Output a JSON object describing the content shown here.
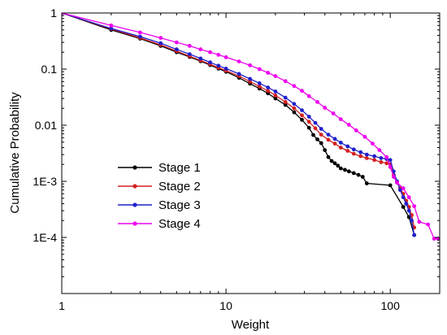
{
  "chart_data": {
    "type": "line",
    "title": "",
    "xlabel": "Weight",
    "ylabel": "Cumulative Probability",
    "x_scale": "log",
    "y_scale": "log",
    "xlim": [
      1,
      200
    ],
    "ylim": [
      1e-05,
      1
    ],
    "grid": false,
    "legend_position": "center-left",
    "x_ticks": [
      {
        "value": 1,
        "label": "1"
      },
      {
        "value": 10,
        "label": "10"
      },
      {
        "value": 100,
        "label": "100"
      }
    ],
    "y_ticks": [
      {
        "value": 1,
        "label": "1"
      },
      {
        "value": 0.1,
        "label": "0.1"
      },
      {
        "value": 0.01,
        "label": "0.01"
      },
      {
        "value": 0.001,
        "label": "1E-3"
      },
      {
        "value": 0.0001,
        "label": "1E-4"
      }
    ],
    "series": [
      {
        "name": "Stage 1",
        "color": "#000000",
        "x": [
          1,
          2,
          3,
          4,
          5,
          6,
          7,
          8,
          9,
          10,
          12,
          14,
          16,
          18,
          20,
          23,
          26,
          29,
          32,
          34,
          36,
          38,
          40,
          42,
          44,
          46,
          48,
          50,
          53,
          56,
          60,
          64,
          68,
          72,
          100,
          120,
          130,
          140
        ],
        "y": [
          1,
          0.5,
          0.35,
          0.26,
          0.2,
          0.165,
          0.138,
          0.118,
          0.102,
          0.09,
          0.07,
          0.055,
          0.045,
          0.037,
          0.03,
          0.023,
          0.017,
          0.0125,
          0.009,
          0.0067,
          0.0056,
          0.0048,
          0.0036,
          0.0027,
          0.0023,
          0.0021,
          0.0019,
          0.0017,
          0.0016,
          0.0015,
          0.0014,
          0.0013,
          0.0012,
          0.00092,
          0.00085,
          0.00035,
          0.00023,
          0.00011
        ]
      },
      {
        "name": "Stage 2",
        "color": "#d42020",
        "x": [
          1,
          2,
          3,
          4,
          5,
          6,
          7,
          8,
          9,
          10,
          12,
          14,
          16,
          18,
          20,
          23,
          26,
          29,
          32,
          35,
          38,
          42,
          46,
          50,
          55,
          60,
          66,
          72,
          80,
          88,
          95,
          100,
          105,
          110,
          115,
          120,
          125,
          130,
          135,
          140
        ],
        "y": [
          1,
          0.52,
          0.36,
          0.27,
          0.21,
          0.17,
          0.143,
          0.122,
          0.106,
          0.094,
          0.075,
          0.06,
          0.049,
          0.041,
          0.034,
          0.026,
          0.02,
          0.015,
          0.0115,
          0.0088,
          0.0068,
          0.0055,
          0.0047,
          0.004,
          0.0035,
          0.0031,
          0.0028,
          0.0026,
          0.0024,
          0.0022,
          0.0021,
          0.002,
          0.0013,
          0.00095,
          0.00075,
          0.0006,
          0.00045,
          0.00035,
          0.00025,
          0.00015
        ]
      },
      {
        "name": "Stage 3",
        "color": "#2020cc",
        "x": [
          1,
          2,
          3,
          4,
          5,
          6,
          7,
          8,
          9,
          10,
          12,
          14,
          16,
          18,
          20,
          23,
          26,
          29,
          32,
          35,
          38,
          42,
          46,
          50,
          55,
          60,
          66,
          72,
          80,
          88,
          95,
          100,
          105,
          110,
          115,
          120,
          125,
          130,
          135,
          140
        ],
        "y": [
          1,
          0.53,
          0.38,
          0.29,
          0.225,
          0.185,
          0.155,
          0.132,
          0.115,
          0.102,
          0.082,
          0.067,
          0.056,
          0.047,
          0.04,
          0.031,
          0.024,
          0.0185,
          0.0142,
          0.011,
          0.0086,
          0.0068,
          0.0057,
          0.0049,
          0.0042,
          0.0037,
          0.0033,
          0.003,
          0.0028,
          0.0026,
          0.0025,
          0.0024,
          0.0015,
          0.001,
          0.0007,
          0.00052,
          0.0004,
          0.0003,
          0.0002,
          0.00011
        ]
      },
      {
        "name": "Stage 4",
        "color": "#ee00ee",
        "x": [
          1,
          2,
          3,
          4,
          5,
          6,
          7,
          8,
          9,
          10,
          12,
          14,
          16,
          18,
          20,
          23,
          26,
          29,
          32,
          36,
          40,
          45,
          50,
          56,
          62,
          70,
          78,
          86,
          95,
          100,
          105,
          110,
          120,
          130,
          140,
          150,
          170,
          185,
          195
        ],
        "y": [
          1,
          0.6,
          0.45,
          0.36,
          0.3,
          0.26,
          0.225,
          0.2,
          0.18,
          0.163,
          0.137,
          0.117,
          0.1,
          0.086,
          0.075,
          0.061,
          0.05,
          0.041,
          0.033,
          0.026,
          0.0205,
          0.0162,
          0.0128,
          0.0102,
          0.0081,
          0.0062,
          0.0047,
          0.0036,
          0.0027,
          0.0018,
          0.0012,
          0.00095,
          0.00075,
          0.00052,
          0.00036,
          0.00019,
          0.00017,
          9.5e-05,
          9.5e-05
        ]
      }
    ]
  }
}
